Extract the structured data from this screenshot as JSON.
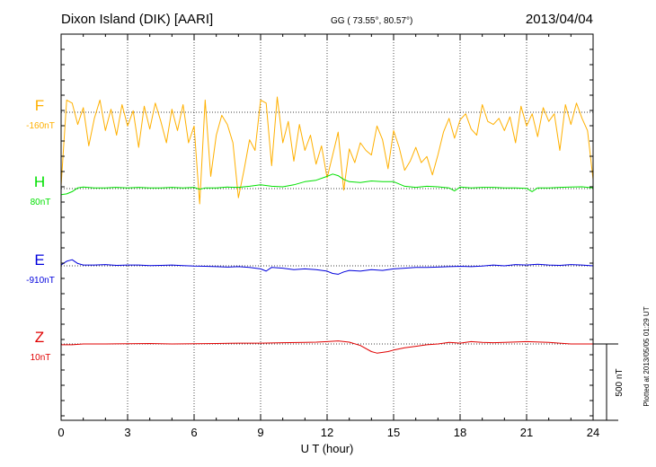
{
  "header": {
    "station": "Dixon Island (DIK)  [AARI]",
    "coords": "GG ( 73.55°,  80.57°)",
    "date": "2013/04/04"
  },
  "footnote": "Plotted at 2013/05/05 01:29 UT",
  "scale_bar_label": "500 nT",
  "chart_data": {
    "type": "line",
    "xlabel": "U T (hour)",
    "xlim": [
      0,
      24
    ],
    "xticks": [
      0,
      3,
      6,
      9,
      12,
      15,
      18,
      21,
      24
    ],
    "tick_labels": [
      "0",
      "3",
      "6",
      "9",
      "12",
      "15",
      "18",
      "21",
      "24"
    ],
    "grid": true,
    "series": [
      {
        "name": "F",
        "baseline_label": "-160nT",
        "color": "#FFB000",
        "x": [
          0.0,
          0.25,
          0.5,
          0.75,
          1.0,
          1.25,
          1.5,
          1.75,
          2.0,
          2.25,
          2.5,
          2.75,
          3.0,
          3.25,
          3.5,
          3.75,
          4.0,
          4.25,
          4.5,
          4.75,
          5.0,
          5.25,
          5.5,
          5.75,
          6.0,
          6.25,
          6.5,
          6.75,
          7.0,
          7.25,
          7.5,
          7.75,
          8.0,
          8.25,
          8.5,
          8.75,
          9.0,
          9.25,
          9.5,
          9.75,
          10.0,
          10.25,
          10.5,
          10.75,
          11.0,
          11.25,
          11.5,
          11.75,
          12.0,
          12.25,
          12.5,
          12.75,
          13.0,
          13.25,
          13.5,
          13.75,
          14.0,
          14.25,
          14.5,
          14.75,
          15.0,
          15.25,
          15.5,
          15.75,
          16.0,
          16.25,
          16.5,
          16.75,
          17.0,
          17.25,
          17.5,
          17.75,
          18.0,
          18.25,
          18.5,
          18.75,
          19.0,
          19.25,
          19.5,
          19.75,
          20.0,
          20.25,
          20.5,
          20.75,
          21.0,
          21.25,
          21.5,
          21.75,
          22.0,
          22.25,
          22.5,
          22.75,
          23.0,
          23.25,
          23.5,
          23.75,
          24.0
        ],
        "values": [
          -480,
          80,
          60,
          -80,
          30,
          -220,
          -40,
          80,
          -120,
          20,
          -150,
          50,
          -90,
          10,
          -230,
          40,
          -110,
          60,
          -60,
          -200,
          20,
          -120,
          50,
          -200,
          -90,
          -600,
          80,
          -420,
          -150,
          -20,
          -80,
          -200,
          -560,
          -380,
          -180,
          -250,
          80,
          60,
          -350,
          100,
          -200,
          -60,
          -320,
          -80,
          -250,
          -150,
          -340,
          -220,
          -430,
          -280,
          -130,
          -510,
          -240,
          -330,
          -200,
          -250,
          -280,
          -90,
          -180,
          -370,
          -120,
          -230,
          -380,
          -320,
          -230,
          -330,
          -290,
          -410,
          -280,
          -130,
          -40,
          -170,
          -50,
          -10,
          -110,
          -150,
          50,
          -60,
          -80,
          -40,
          -120,
          -30,
          -200,
          40,
          -90,
          -10,
          -160,
          30,
          -60,
          -10,
          -250,
          50,
          -80,
          60,
          -40,
          -120,
          -440
        ]
      },
      {
        "name": "H",
        "baseline_label": "80nT",
        "color": "#00E000",
        "x": [
          0.0,
          0.25,
          0.5,
          0.75,
          1.0,
          1.5,
          2.0,
          2.5,
          3.0,
          3.5,
          4.0,
          4.5,
          5.0,
          5.5,
          6.0,
          6.25,
          6.5,
          7.0,
          7.5,
          8.0,
          8.5,
          9.0,
          9.5,
          10.0,
          10.5,
          11.0,
          11.5,
          12.0,
          12.25,
          12.5,
          12.75,
          13.0,
          13.5,
          14.0,
          14.5,
          15.0,
          15.5,
          16.0,
          16.5,
          17.0,
          17.5,
          17.75,
          18.0,
          18.5,
          19.0,
          19.5,
          20.0,
          20.5,
          21.0,
          21.25,
          21.5,
          22.0,
          22.5,
          23.0,
          23.5,
          24.0
        ],
        "values": [
          -40,
          -35,
          -20,
          5,
          10,
          5,
          5,
          8,
          5,
          8,
          5,
          5,
          8,
          5,
          8,
          -5,
          5,
          5,
          10,
          8,
          15,
          25,
          15,
          12,
          25,
          45,
          55,
          80,
          95,
          85,
          60,
          45,
          40,
          50,
          45,
          45,
          15,
          8,
          15,
          12,
          5,
          -15,
          10,
          5,
          8,
          8,
          5,
          5,
          2,
          -20,
          5,
          5,
          8,
          10,
          12,
          5
        ]
      },
      {
        "name": "E",
        "baseline_label": "-910nT",
        "color": "#0000DD",
        "x": [
          0.0,
          0.25,
          0.5,
          0.75,
          1.0,
          1.5,
          2.0,
          2.5,
          3.0,
          3.5,
          4.0,
          4.5,
          5.0,
          5.5,
          6.0,
          6.5,
          7.0,
          7.5,
          8.0,
          8.5,
          9.0,
          9.25,
          9.5,
          10.0,
          10.5,
          11.0,
          11.5,
          12.0,
          12.25,
          12.5,
          12.75,
          13.0,
          13.5,
          14.0,
          14.5,
          15.0,
          15.5,
          16.0,
          16.5,
          17.0,
          17.5,
          18.0,
          18.5,
          19.0,
          19.5,
          20.0,
          20.5,
          21.0,
          21.5,
          22.0,
          22.5,
          23.0,
          23.5,
          24.0
        ],
        "values": [
          5,
          30,
          40,
          15,
          5,
          5,
          8,
          3,
          5,
          5,
          2,
          3,
          5,
          2,
          -2,
          -3,
          -5,
          -8,
          -5,
          -10,
          -20,
          -35,
          -10,
          -15,
          -25,
          -20,
          -25,
          -35,
          -50,
          -55,
          -40,
          -30,
          -35,
          -25,
          -30,
          -20,
          -15,
          -10,
          -10,
          -8,
          -5,
          -3,
          -5,
          -2,
          5,
          0,
          8,
          5,
          10,
          5,
          3,
          8,
          5,
          0
        ]
      },
      {
        "name": "Z",
        "baseline_label": "10nT",
        "color": "#E00000",
        "x": [
          0.0,
          0.5,
          1.0,
          2.0,
          3.0,
          4.0,
          5.0,
          6.0,
          7.0,
          8.0,
          9.0,
          10.0,
          11.0,
          11.5,
          12.0,
          12.5,
          13.0,
          13.5,
          14.0,
          14.25,
          14.5,
          14.75,
          15.0,
          15.5,
          16.0,
          16.5,
          17.0,
          17.5,
          18.0,
          18.5,
          19.0,
          19.5,
          20.0,
          21.0,
          22.0,
          23.0,
          24.0
        ],
        "values": [
          -5,
          -5,
          0,
          0,
          2,
          3,
          0,
          2,
          3,
          5,
          5,
          8,
          10,
          12,
          15,
          20,
          12,
          -10,
          -50,
          -60,
          -55,
          -50,
          -40,
          -25,
          -15,
          -5,
          0,
          10,
          5,
          15,
          10,
          8,
          10,
          15,
          10,
          0,
          0
        ]
      }
    ]
  }
}
